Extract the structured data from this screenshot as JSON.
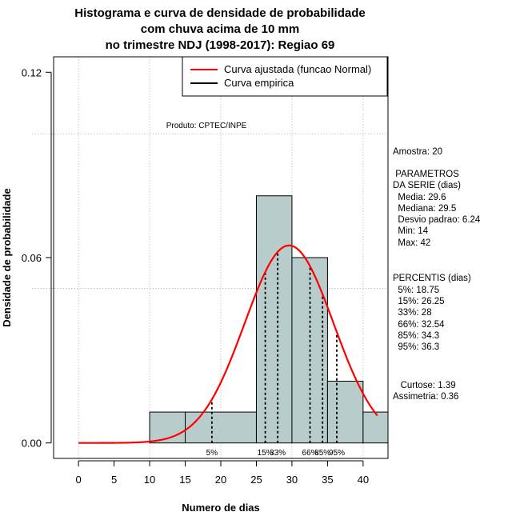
{
  "chart_data": {
    "type": "bar",
    "title_lines": [
      "Histograma e curva de densidade de probabilidade",
      "com chuva acima de 10 mm",
      "no trimestre NDJ (1998-2017): Regiao 69"
    ],
    "xlabel": "Numero de dias",
    "ylabel": "Densidade de probabilidade",
    "xlim": [
      -3.5,
      43.5
    ],
    "ylim": [
      -0.005,
      0.125
    ],
    "x_ticks": [
      0,
      5,
      10,
      15,
      20,
      25,
      30,
      35,
      40
    ],
    "y_ticks": [
      0.0,
      0.06,
      0.12
    ],
    "y_tick_labels": [
      "0.00",
      "0.06",
      "0.12"
    ],
    "grid": true,
    "grid_x": [
      0,
      10,
      20,
      30,
      40
    ],
    "grid_y": [
      0.05,
      0.1
    ],
    "histogram": {
      "bins": [
        [
          10,
          15
        ],
        [
          15,
          25
        ],
        [
          25,
          30
        ],
        [
          30,
          35
        ],
        [
          35,
          40
        ],
        [
          40,
          45
        ]
      ],
      "densities": [
        0.01,
        0.01,
        0.08,
        0.06,
        0.02,
        0.01
      ]
    },
    "normal_curve": {
      "mean": 29.6,
      "sd": 6.24,
      "x_from": 0,
      "x_to": 42
    },
    "percentiles": [
      {
        "label": "5%",
        "value": 18.75
      },
      {
        "label": "15%",
        "value": 26.25
      },
      {
        "label": "33%",
        "value": 28
      },
      {
        "label": "66%",
        "value": 32.54
      },
      {
        "label": "85%",
        "value": 34.3
      },
      {
        "label": "95%",
        "value": 36.3
      }
    ],
    "legend": [
      {
        "label": "Curva ajustada (funcao Normal)",
        "color": "#ff0000"
      },
      {
        "label": "Curva empirica",
        "color": "#000000"
      }
    ],
    "product_note": "Produto: CPTEC/INPE",
    "colors": {
      "bar_fill": "#b8cccc",
      "curve": "#ff0000",
      "grid": "#b0b0b0"
    }
  },
  "side_panel": {
    "amostra": "Amostra: 20",
    "params_title": " PARAMETROS",
    "params_subtitle": "DA SERIE (dias)",
    "params": [
      "  Media: 29.6",
      "  Mediana: 29.5",
      "  Desvio padrao: 6.24",
      "  Min: 14",
      "  Max: 42"
    ],
    "percentis_title": "PERCENTIS (dias)",
    "percentis": [
      "  5%: 18.75",
      "  15%: 26.25",
      "  33%: 28",
      "  66%: 32.54",
      "  85%: 34.3",
      "  95%: 36.3"
    ],
    "curtose": "   Curtose: 1.39",
    "assimetria": "Assimetria: 0.36"
  }
}
